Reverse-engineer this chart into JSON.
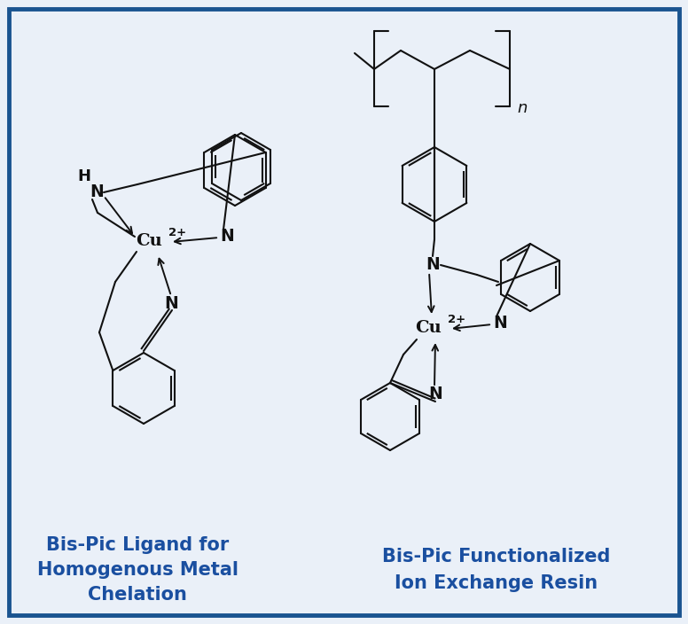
{
  "bg_color": "#eaf0f8",
  "border_color": "#1a5490",
  "line_color": "#111111",
  "text_color_blue": "#1a4fa0",
  "label1_line1": "Bis-Pic Ligand for",
  "label1_line2": "Homogenous Metal",
  "label1_line3": "Chelation",
  "label2_line1": "Bis-Pic Functionalized",
  "label2_line2": "Ion Exchange Resin",
  "figsize": [
    7.76,
    7.04
  ],
  "dpi": 100
}
